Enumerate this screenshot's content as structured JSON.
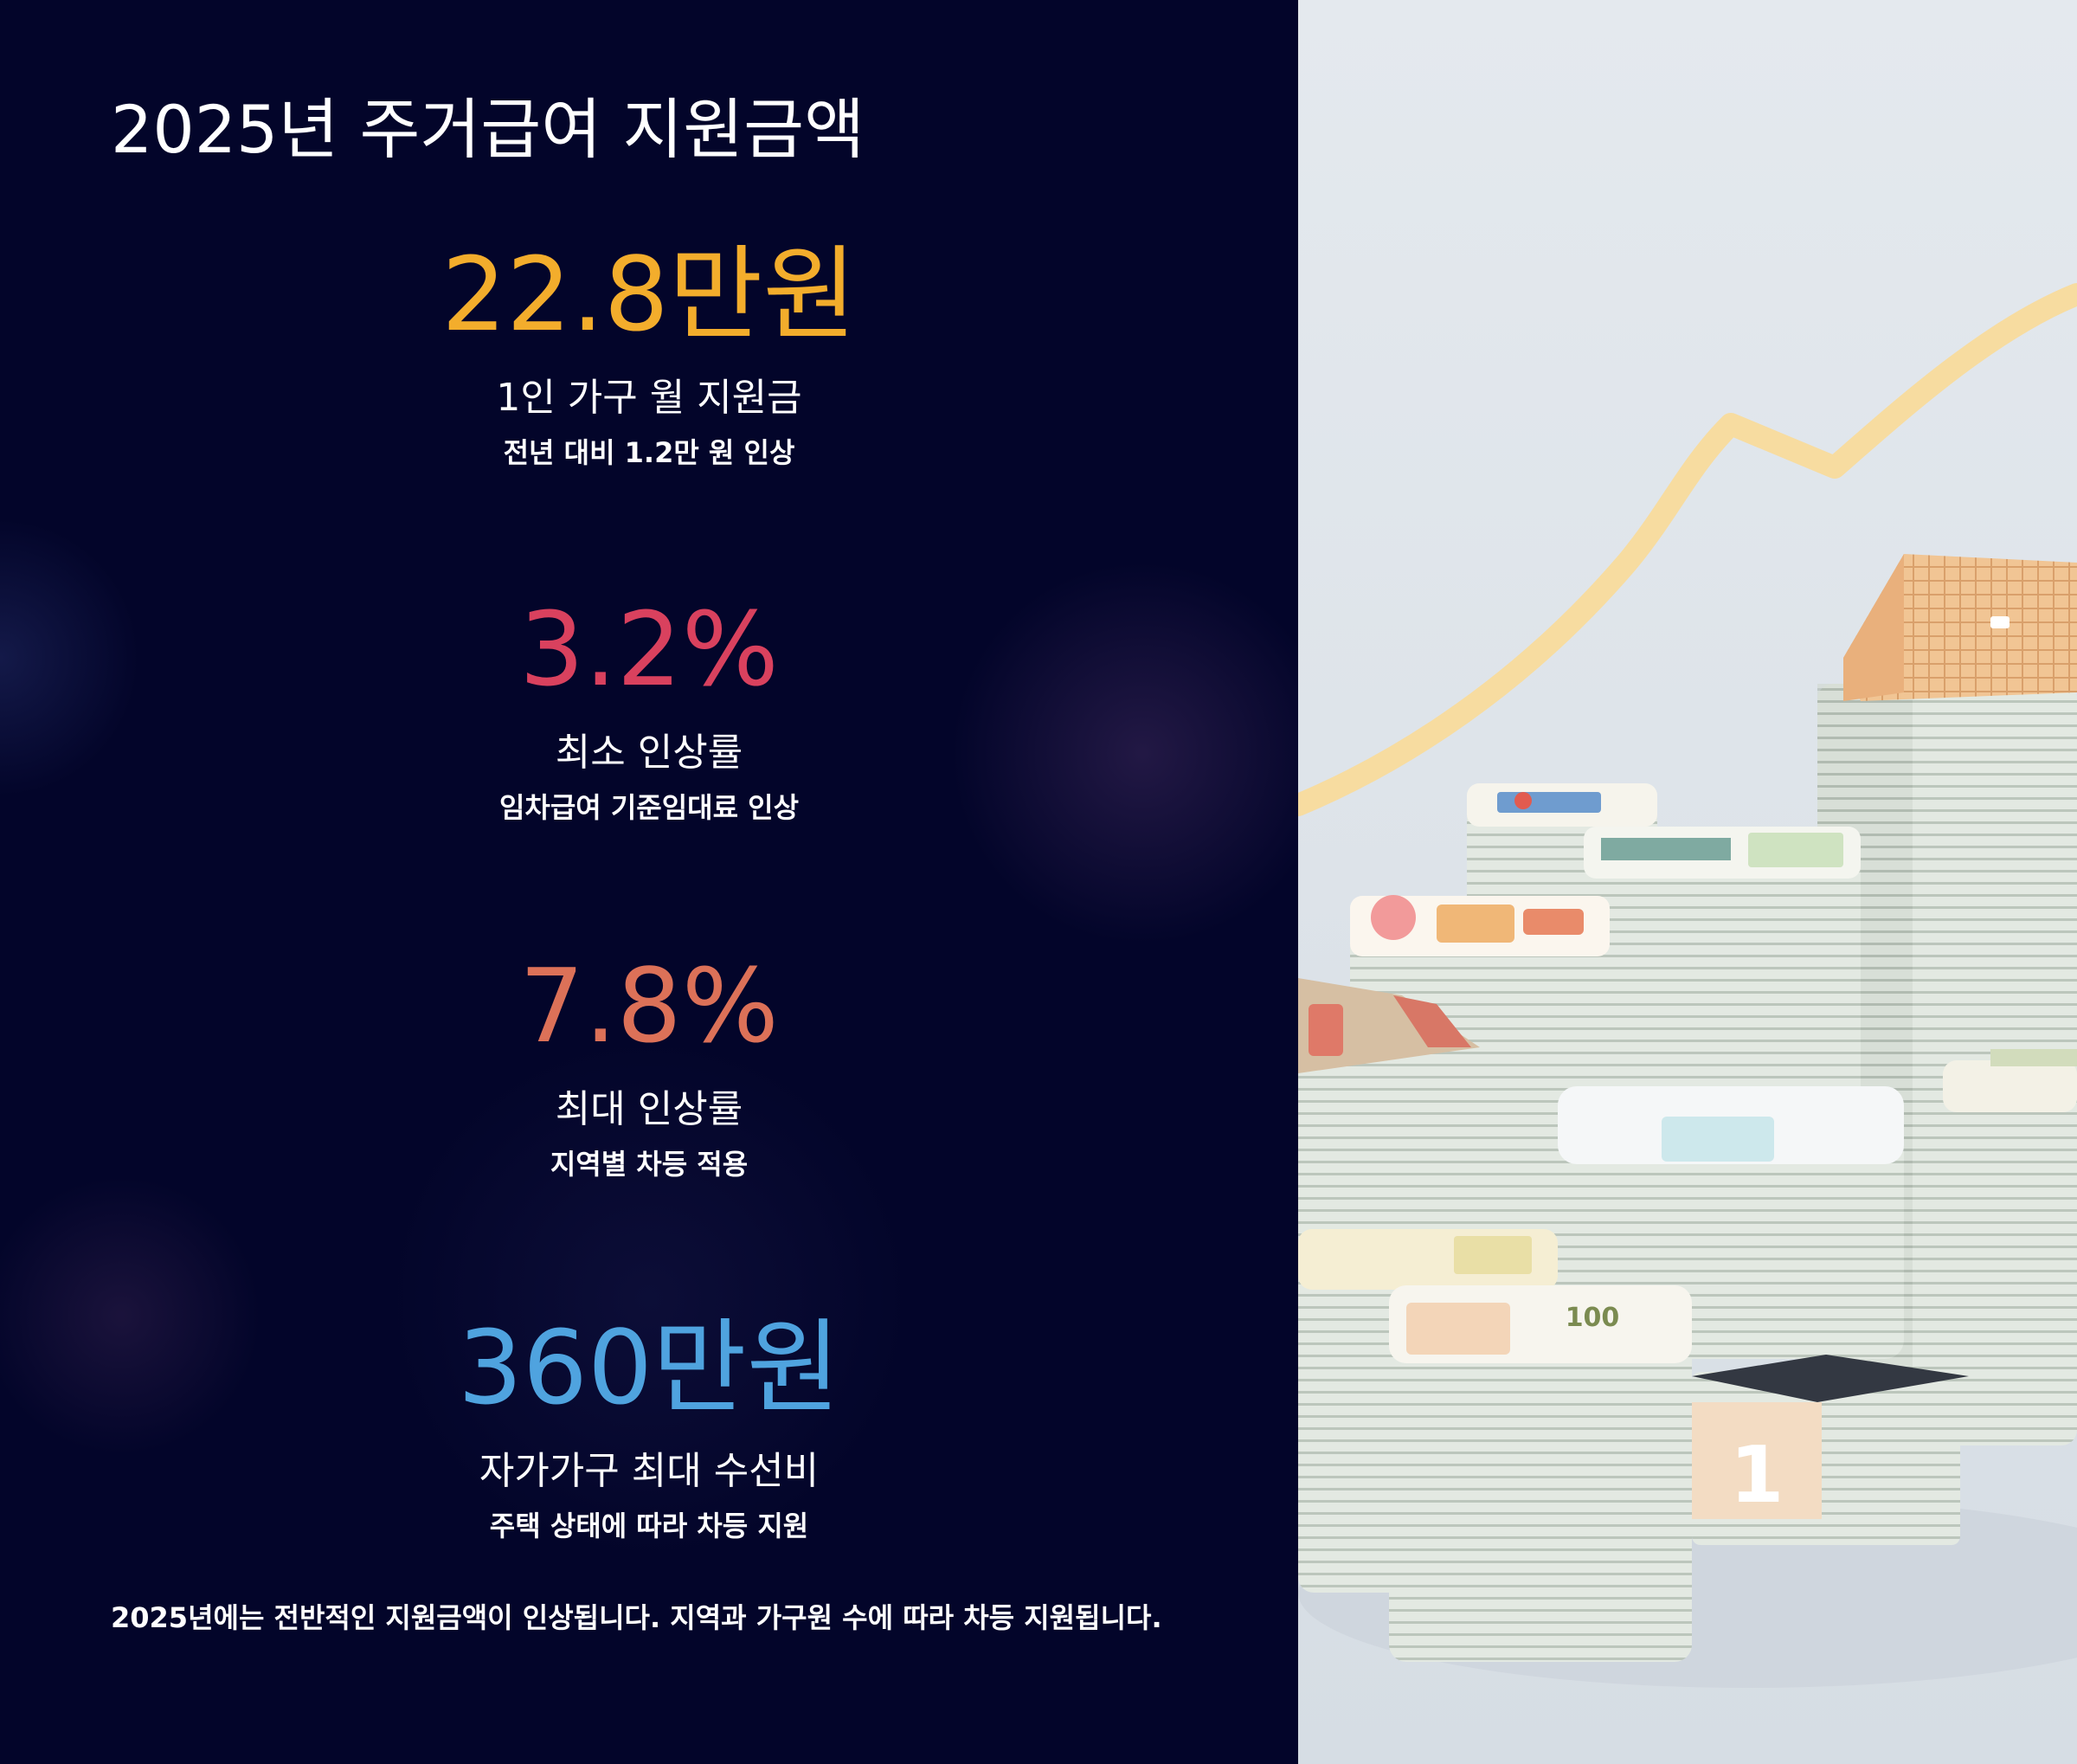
{
  "title": "2025년 주거급여 지원금액",
  "stats": [
    {
      "value": "22.8만원",
      "label": "1인 가구 월 지원금",
      "sub": "전년 대비 1.2만 원 인상",
      "color": "#f3ad2c"
    },
    {
      "value": "3.2%",
      "label": "최소 인상률",
      "sub": "임차급여 기준임대료 인상",
      "color": "#d9415e"
    },
    {
      "value": "7.8%",
      "label": "최대 인상률",
      "sub": "지역별 차등 적용",
      "color": "#dc7158"
    },
    {
      "value": "360만원",
      "label": "자가가구 최대 수선비",
      "sub": "주택 상태에 따라 차등 지원",
      "color": "#4fa3df"
    }
  ],
  "footnote": "2025년에는 전반적인 지원금액이 인상됩니다. 지역과 가구원 수에 따라 차등 지원됩니다.",
  "illustration": {
    "banknote_label": "100",
    "house_number": "1",
    "trend_color": "#f7dca0"
  }
}
